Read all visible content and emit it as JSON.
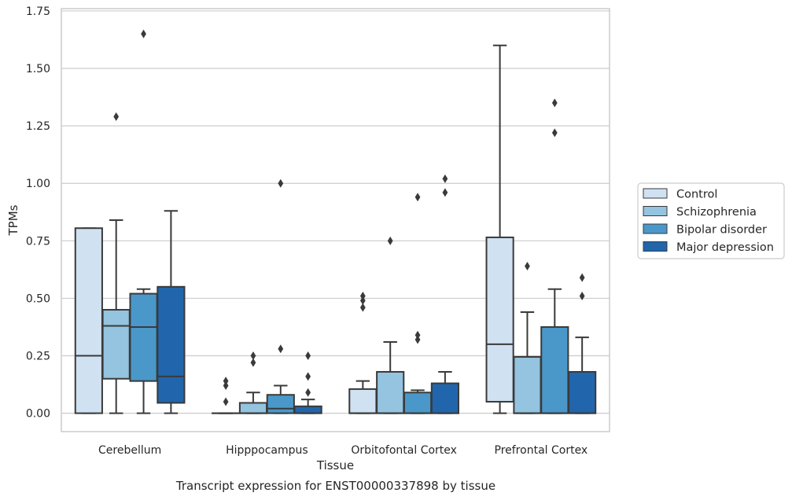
{
  "chart_data": {
    "type": "boxplot",
    "title": "Transcript expression for ENST00000337898 by tissue",
    "xlabel": "Tissue",
    "ylabel": "TPMs",
    "ylim": [
      -0.08,
      1.76
    ],
    "yticks": [
      "0.00",
      "0.25",
      "0.50",
      "0.75",
      "1.00",
      "1.25",
      "1.50",
      "1.75"
    ],
    "grid": true,
    "legend_position": "right",
    "categories": [
      "Cerebellum",
      "Hipppocampus",
      "Orbitofontal Cortex",
      "Prefrontal Cortex"
    ],
    "series": [
      {
        "name": "Control",
        "color": "#d0e1f2",
        "boxes": [
          {
            "q1": 0.0,
            "median": 0.25,
            "q3": 0.805,
            "whislo": 0.0,
            "whishi": 0.805,
            "fliers": []
          },
          {
            "q1": 0.0,
            "median": 0.0,
            "q3": 0.0,
            "whislo": 0.0,
            "whishi": 0.0,
            "fliers": [
              0.05,
              0.12,
              0.14
            ]
          },
          {
            "q1": 0.0,
            "median": 0.0,
            "q3": 0.105,
            "whislo": 0.0,
            "whishi": 0.14,
            "fliers": [
              0.46,
              0.49,
              0.51
            ]
          },
          {
            "q1": 0.05,
            "median": 0.3,
            "q3": 0.765,
            "whislo": 0.0,
            "whishi": 1.6,
            "fliers": []
          }
        ]
      },
      {
        "name": "Schizophrenia",
        "color": "#94c4df",
        "boxes": [
          {
            "q1": 0.15,
            "median": 0.38,
            "q3": 0.45,
            "whislo": 0.0,
            "whishi": 0.84,
            "fliers": [
              1.29
            ]
          },
          {
            "q1": 0.0,
            "median": 0.0,
            "q3": 0.045,
            "whislo": 0.0,
            "whishi": 0.09,
            "fliers": [
              0.22,
              0.25
            ]
          },
          {
            "q1": 0.0,
            "median": 0.0,
            "q3": 0.18,
            "whislo": 0.0,
            "whishi": 0.31,
            "fliers": [
              0.75
            ]
          },
          {
            "q1": 0.0,
            "median": 0.0,
            "q3": 0.245,
            "whislo": 0.0,
            "whishi": 0.44,
            "fliers": [
              0.64
            ]
          }
        ]
      },
      {
        "name": "Bipolar disorder",
        "color": "#4a98c9",
        "boxes": [
          {
            "q1": 0.14,
            "median": 0.375,
            "q3": 0.52,
            "whislo": 0.0,
            "whishi": 0.54,
            "fliers": [
              1.65
            ]
          },
          {
            "q1": 0.0,
            "median": 0.02,
            "q3": 0.08,
            "whislo": 0.0,
            "whishi": 0.12,
            "fliers": [
              0.28,
              1.0
            ]
          },
          {
            "q1": 0.0,
            "median": 0.0,
            "q3": 0.09,
            "whislo": 0.0,
            "whishi": 0.1,
            "fliers": [
              0.32,
              0.34,
              0.94
            ]
          },
          {
            "q1": 0.0,
            "median": 0.0,
            "q3": 0.375,
            "whislo": 0.0,
            "whishi": 0.54,
            "fliers": [
              1.22,
              1.35
            ]
          }
        ]
      },
      {
        "name": "Major depression",
        "color": "#2166ac",
        "boxes": [
          {
            "q1": 0.045,
            "median": 0.16,
            "q3": 0.55,
            "whislo": 0.0,
            "whishi": 0.88,
            "fliers": []
          },
          {
            "q1": 0.0,
            "median": 0.0,
            "q3": 0.03,
            "whislo": 0.0,
            "whishi": 0.06,
            "fliers": [
              0.09,
              0.16,
              0.25
            ]
          },
          {
            "q1": 0.0,
            "median": 0.0,
            "q3": 0.13,
            "whislo": 0.0,
            "whishi": 0.18,
            "fliers": [
              0.96,
              1.02
            ]
          },
          {
            "q1": 0.0,
            "median": 0.0,
            "q3": 0.18,
            "whislo": 0.0,
            "whishi": 0.33,
            "fliers": [
              0.51,
              0.59
            ]
          }
        ]
      }
    ]
  },
  "style": {
    "edge_color": "#3a3a3a",
    "grid_color": "#cccccc",
    "frame_color": "#cccccc",
    "text_color": "#262626"
  }
}
